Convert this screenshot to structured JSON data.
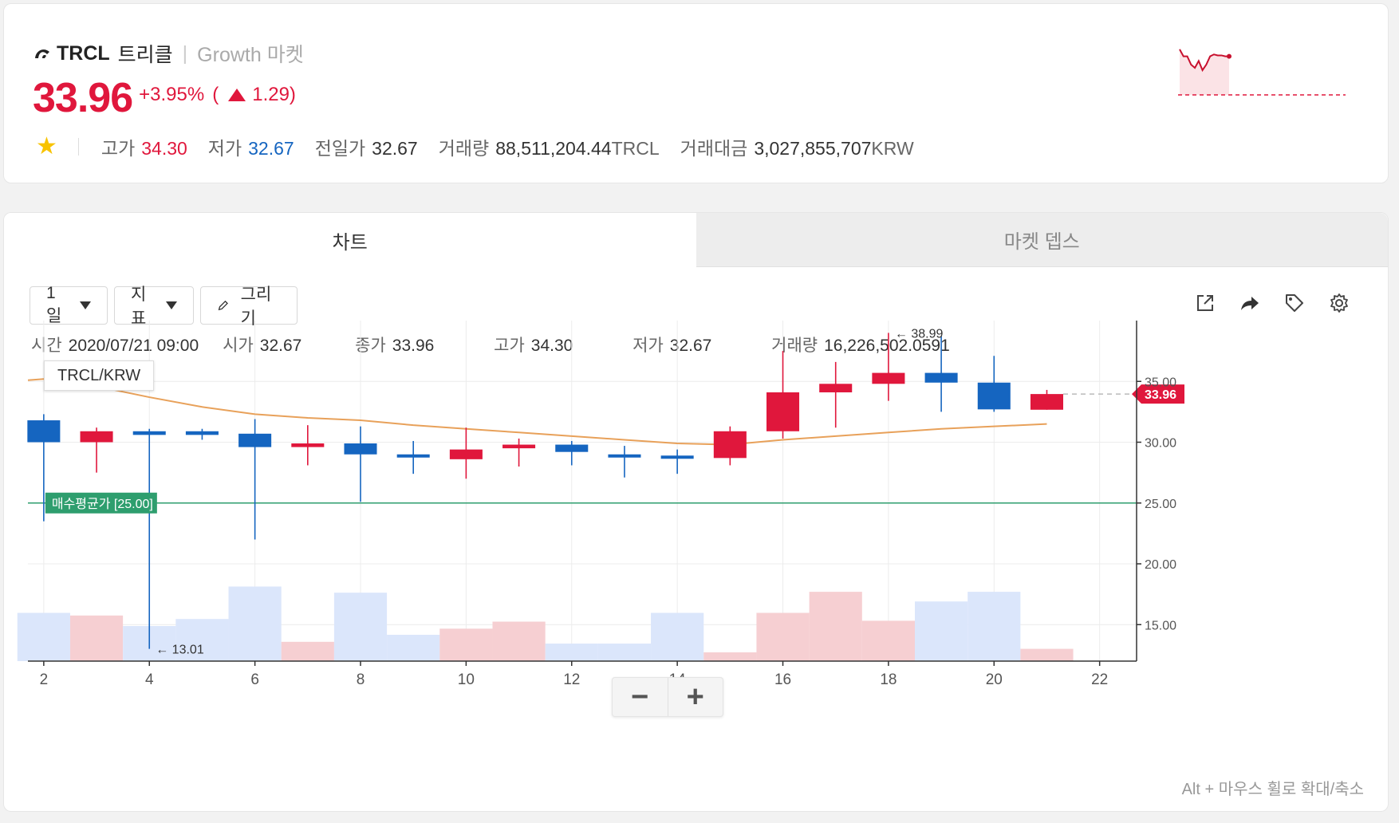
{
  "header": {
    "symbol": "TRCL",
    "name_kr": "트리클",
    "market": "Growth 마켓",
    "price": "33.96",
    "change_pct": "+3.95%",
    "change_open": "(",
    "change_abs": "1.29)",
    "high_label": "고가",
    "high": "34.30",
    "low_label": "저가",
    "low": "32.67",
    "prev_label": "전일가",
    "prev": "32.67",
    "vol_label": "거래량",
    "vol": "88,511,204.44",
    "vol_unit": "TRCL",
    "amt_label": "거래대금",
    "amt": "3,027,855,707",
    "amt_unit": "KRW"
  },
  "tabs": {
    "chart": "차트",
    "depth": "마켓 뎁스"
  },
  "toolbar": {
    "period": "1 일",
    "indicator": "지표",
    "draw": "그리기"
  },
  "ohlc": {
    "time_label": "시간",
    "time": "2020/07/21 09:00",
    "open_label": "시가",
    "open": "32.67",
    "close_label": "종가",
    "close": "33.96",
    "high_label": "고가",
    "high": "34.30",
    "low_label": "저가",
    "low": "32.67",
    "vol_label": "거래량",
    "vol": "16,226,502.0591"
  },
  "pair_label": "TRCL/KRW",
  "zoom": {
    "minus": "−",
    "plus": "+"
  },
  "hint": "Alt + 마우스 휠로 확대/축소",
  "colors": {
    "up": "#e0173c",
    "down": "#1565c0",
    "ma": "#e8a15a",
    "avg": "#2e9e6e"
  },
  "chart_data": {
    "type": "candlestick",
    "x_ticks": [
      2,
      4,
      6,
      8,
      10,
      12,
      14,
      16,
      18,
      20,
      22
    ],
    "y_ticks": [
      "35.00",
      "30.00",
      "25.00",
      "20.00",
      "15.00"
    ],
    "ylim": [
      12,
      40
    ],
    "xlim": [
      1.7,
      22.7
    ],
    "candles": [
      {
        "x": 2,
        "open": 31.8,
        "close": 30.0,
        "high": 32.3,
        "low": 23.5
      },
      {
        "x": 3,
        "open": 30.0,
        "close": 30.9,
        "high": 31.2,
        "low": 27.5
      },
      {
        "x": 4,
        "open": 30.9,
        "close": 30.6,
        "high": 31.1,
        "low": 13.01
      },
      {
        "x": 5,
        "open": 30.9,
        "close": 30.6,
        "high": 31.1,
        "low": 30.2
      },
      {
        "x": 6,
        "open": 30.7,
        "close": 29.6,
        "high": 31.9,
        "low": 22.0
      },
      {
        "x": 7,
        "open": 29.6,
        "close": 29.9,
        "high": 31.4,
        "low": 28.1
      },
      {
        "x": 8,
        "open": 29.9,
        "close": 29.0,
        "high": 31.3,
        "low": 25.1
      },
      {
        "x": 9,
        "open": 29.0,
        "close": 28.8,
        "high": 30.1,
        "low": 27.4
      },
      {
        "x": 10,
        "open": 28.6,
        "close": 29.4,
        "high": 31.2,
        "low": 27.0
      },
      {
        "x": 11,
        "open": 29.5,
        "close": 29.8,
        "high": 30.3,
        "low": 28.0
      },
      {
        "x": 12,
        "open": 29.8,
        "close": 29.2,
        "high": 30.1,
        "low": 28.1
      },
      {
        "x": 13,
        "open": 29.0,
        "close": 28.8,
        "high": 29.7,
        "low": 27.1
      },
      {
        "x": 14,
        "open": 28.9,
        "close": 28.7,
        "high": 29.4,
        "low": 27.4
      },
      {
        "x": 15,
        "open": 28.7,
        "close": 30.9,
        "high": 31.3,
        "low": 28.1
      },
      {
        "x": 16,
        "open": 30.9,
        "close": 34.1,
        "high": 37.5,
        "low": 30.3
      },
      {
        "x": 17,
        "open": 34.1,
        "close": 34.8,
        "high": 36.6,
        "low": 31.2
      },
      {
        "x": 18,
        "open": 34.8,
        "close": 35.7,
        "high": 38.99,
        "low": 33.4
      },
      {
        "x": 19,
        "open": 35.7,
        "close": 34.9,
        "high": 38.7,
        "low": 32.5
      },
      {
        "x": 20,
        "open": 34.9,
        "close": 32.7,
        "high": 37.1,
        "low": 32.5
      },
      {
        "x": 21,
        "open": 32.67,
        "close": 33.96,
        "high": 34.3,
        "low": 32.67
      }
    ],
    "ma": [
      [
        1.7,
        35.1
      ],
      [
        2,
        35.2
      ],
      [
        3,
        34.6
      ],
      [
        4,
        33.7
      ],
      [
        5,
        32.9
      ],
      [
        6,
        32.3
      ],
      [
        7,
        32.0
      ],
      [
        8,
        31.8
      ],
      [
        9,
        31.4
      ],
      [
        10,
        31.1
      ],
      [
        11,
        30.8
      ],
      [
        12,
        30.5
      ],
      [
        13,
        30.2
      ],
      [
        14,
        29.9
      ],
      [
        15,
        29.8
      ],
      [
        16,
        30.2
      ],
      [
        17,
        30.5
      ],
      [
        18,
        30.8
      ],
      [
        19,
        31.1
      ],
      [
        20,
        31.3
      ],
      [
        21,
        31.5
      ]
    ],
    "volume": [
      {
        "x": 2,
        "v": 0.55,
        "up": false
      },
      {
        "x": 3,
        "v": 0.52,
        "up": true
      },
      {
        "x": 4,
        "v": 0.4,
        "up": false
      },
      {
        "x": 5,
        "v": 0.48,
        "up": false
      },
      {
        "x": 6,
        "v": 0.85,
        "up": false
      },
      {
        "x": 7,
        "v": 0.22,
        "up": true
      },
      {
        "x": 8,
        "v": 0.78,
        "up": false
      },
      {
        "x": 9,
        "v": 0.3,
        "up": false
      },
      {
        "x": 10,
        "v": 0.37,
        "up": true
      },
      {
        "x": 11,
        "v": 0.45,
        "up": true
      },
      {
        "x": 12,
        "v": 0.2,
        "up": false
      },
      {
        "x": 13,
        "v": 0.2,
        "up": false
      },
      {
        "x": 14,
        "v": 0.55,
        "up": false
      },
      {
        "x": 15,
        "v": 0.1,
        "up": true
      },
      {
        "x": 16,
        "v": 0.55,
        "up": true
      },
      {
        "x": 17,
        "v": 0.79,
        "up": true
      },
      {
        "x": 18,
        "v": 0.46,
        "up": true
      },
      {
        "x": 19,
        "v": 0.68,
        "up": false
      },
      {
        "x": 20,
        "v": 0.79,
        "up": false
      },
      {
        "x": 21,
        "v": 0.14,
        "up": true
      }
    ],
    "avg_price": 25.0,
    "avg_label": "매수평균가 [25.00]",
    "current_price": 33.96,
    "current_label": "33.96",
    "max_label": "← 38.99",
    "min_label": "← 13.01",
    "spark": [
      0.95,
      0.8,
      0.8,
      0.62,
      0.55,
      0.7,
      0.5,
      0.62,
      0.8,
      0.84,
      0.82,
      0.82,
      0.8,
      0.8
    ]
  }
}
